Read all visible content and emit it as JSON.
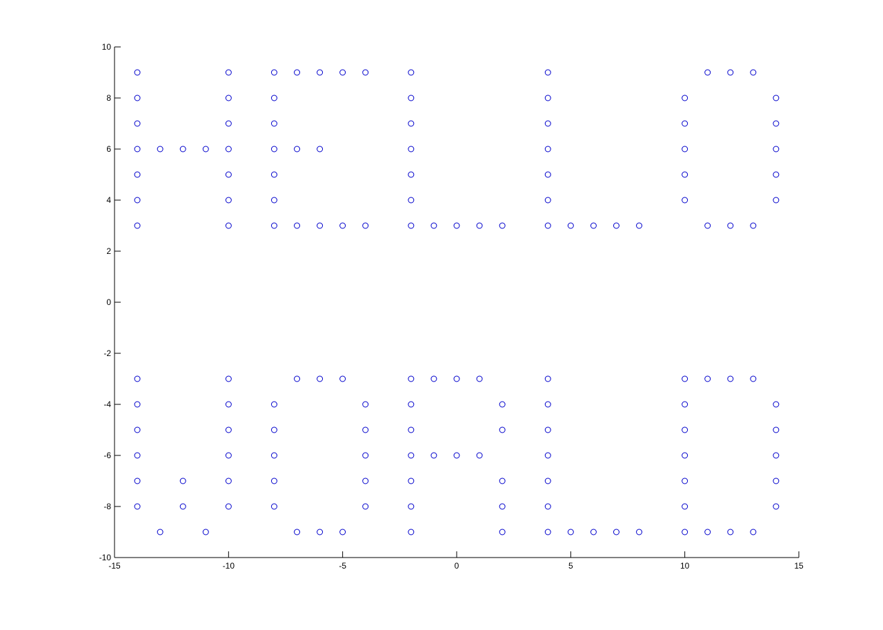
{
  "chart_data": {
    "type": "scatter",
    "title": "",
    "xlabel": "",
    "ylabel": "",
    "xlim": [
      -15,
      15
    ],
    "ylim": [
      -10,
      10
    ],
    "xticks": [
      -15,
      -10,
      -5,
      0,
      5,
      10,
      15
    ],
    "yticks": [
      -10,
      -8,
      -6,
      -4,
      -2,
      0,
      2,
      4,
      6,
      8,
      10
    ],
    "grid": false,
    "legend": "none",
    "marker": "circle-open",
    "marker_color": "#0000cc",
    "axis_color": "#000000",
    "series": [
      {
        "points": [
          [
            -14,
            9
          ],
          [
            -14,
            8
          ],
          [
            -14,
            7
          ],
          [
            -14,
            6
          ],
          [
            -14,
            5
          ],
          [
            -14,
            4
          ],
          [
            -14,
            3
          ],
          [
            -13,
            6
          ],
          [
            -12,
            6
          ],
          [
            -11,
            6
          ],
          [
            -10,
            9
          ],
          [
            -10,
            8
          ],
          [
            -10,
            7
          ],
          [
            -10,
            6
          ],
          [
            -10,
            5
          ],
          [
            -10,
            4
          ],
          [
            -10,
            3
          ],
          [
            -8,
            9
          ],
          [
            -8,
            8
          ],
          [
            -8,
            7
          ],
          [
            -8,
            6
          ],
          [
            -8,
            5
          ],
          [
            -8,
            4
          ],
          [
            -8,
            3
          ],
          [
            -7,
            9
          ],
          [
            -6,
            9
          ],
          [
            -5,
            9
          ],
          [
            -4,
            9
          ],
          [
            -7,
            6
          ],
          [
            -6,
            6
          ],
          [
            -7,
            3
          ],
          [
            -6,
            3
          ],
          [
            -5,
            3
          ],
          [
            -4,
            3
          ],
          [
            -2,
            9
          ],
          [
            -2,
            8
          ],
          [
            -2,
            7
          ],
          [
            -2,
            6
          ],
          [
            -2,
            5
          ],
          [
            -2,
            4
          ],
          [
            -2,
            3
          ],
          [
            -1,
            3
          ],
          [
            0,
            3
          ],
          [
            1,
            3
          ],
          [
            2,
            3
          ],
          [
            4,
            9
          ],
          [
            4,
            8
          ],
          [
            4,
            7
          ],
          [
            4,
            6
          ],
          [
            4,
            5
          ],
          [
            4,
            4
          ],
          [
            4,
            3
          ],
          [
            5,
            3
          ],
          [
            6,
            3
          ],
          [
            7,
            3
          ],
          [
            8,
            3
          ],
          [
            11,
            9
          ],
          [
            12,
            9
          ],
          [
            13,
            9
          ],
          [
            10,
            8
          ],
          [
            10,
            7
          ],
          [
            10,
            6
          ],
          [
            10,
            5
          ],
          [
            10,
            4
          ],
          [
            14,
            8
          ],
          [
            14,
            7
          ],
          [
            14,
            6
          ],
          [
            14,
            5
          ],
          [
            14,
            4
          ],
          [
            11,
            3
          ],
          [
            12,
            3
          ],
          [
            13,
            3
          ],
          [
            -14,
            -3
          ],
          [
            -14,
            -4
          ],
          [
            -14,
            -5
          ],
          [
            -14,
            -6
          ],
          [
            -14,
            -7
          ],
          [
            -14,
            -8
          ],
          [
            -13,
            -9
          ],
          [
            -12,
            -7
          ],
          [
            -12,
            -8
          ],
          [
            -11,
            -9
          ],
          [
            -10,
            -3
          ],
          [
            -10,
            -4
          ],
          [
            -10,
            -5
          ],
          [
            -10,
            -6
          ],
          [
            -10,
            -7
          ],
          [
            -10,
            -8
          ],
          [
            -7,
            -3
          ],
          [
            -6,
            -3
          ],
          [
            -5,
            -3
          ],
          [
            -8,
            -4
          ],
          [
            -8,
            -5
          ],
          [
            -8,
            -6
          ],
          [
            -8,
            -7
          ],
          [
            -8,
            -8
          ],
          [
            -4,
            -4
          ],
          [
            -4,
            -5
          ],
          [
            -4,
            -6
          ],
          [
            -4,
            -7
          ],
          [
            -4,
            -8
          ],
          [
            -7,
            -9
          ],
          [
            -6,
            -9
          ],
          [
            -5,
            -9
          ],
          [
            -2,
            -3
          ],
          [
            -1,
            -3
          ],
          [
            0,
            -3
          ],
          [
            1,
            -3
          ],
          [
            -2,
            -4
          ],
          [
            -2,
            -5
          ],
          [
            -2,
            -6
          ],
          [
            -2,
            -7
          ],
          [
            -2,
            -8
          ],
          [
            -2,
            -9
          ],
          [
            2,
            -4
          ],
          [
            2,
            -5
          ],
          [
            -1,
            -6
          ],
          [
            0,
            -6
          ],
          [
            1,
            -6
          ],
          [
            2,
            -7
          ],
          [
            2,
            -8
          ],
          [
            2,
            -9
          ],
          [
            4,
            -3
          ],
          [
            4,
            -4
          ],
          [
            4,
            -5
          ],
          [
            4,
            -6
          ],
          [
            4,
            -7
          ],
          [
            4,
            -8
          ],
          [
            4,
            -9
          ],
          [
            5,
            -9
          ],
          [
            6,
            -9
          ],
          [
            7,
            -9
          ],
          [
            8,
            -9
          ],
          [
            10,
            -3
          ],
          [
            11,
            -3
          ],
          [
            12,
            -3
          ],
          [
            13,
            -3
          ],
          [
            10,
            -4
          ],
          [
            10,
            -5
          ],
          [
            10,
            -6
          ],
          [
            10,
            -7
          ],
          [
            10,
            -8
          ],
          [
            10,
            -9
          ],
          [
            14,
            -4
          ],
          [
            14,
            -5
          ],
          [
            14,
            -6
          ],
          [
            14,
            -7
          ],
          [
            14,
            -8
          ],
          [
            11,
            -9
          ],
          [
            12,
            -9
          ],
          [
            13,
            -9
          ]
        ]
      }
    ]
  }
}
